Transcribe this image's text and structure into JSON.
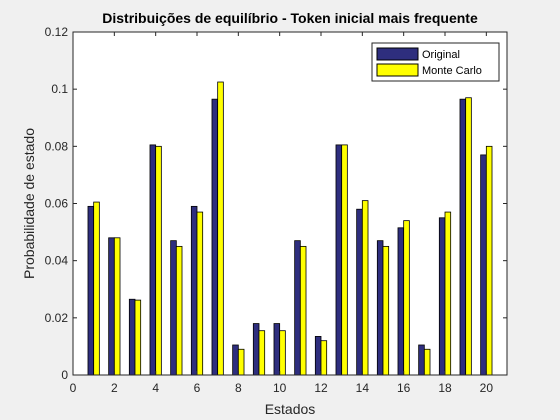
{
  "chart_data": {
    "type": "bar",
    "title": "Distribuições de equilíbrio - Token inicial mais frequente",
    "xlabel": "Estados",
    "ylabel": "Probabilidade de estado",
    "xlim": [
      0,
      21
    ],
    "ylim": [
      0,
      0.12
    ],
    "x_ticks": [
      0,
      2,
      4,
      6,
      8,
      10,
      12,
      14,
      16,
      18,
      20
    ],
    "y_ticks": [
      0,
      0.02,
      0.04,
      0.06,
      0.08,
      0.1,
      0.12
    ],
    "x_tick_labels": [
      "0",
      "2",
      "4",
      "6",
      "8",
      "10",
      "12",
      "14",
      "16",
      "18",
      "20"
    ],
    "y_tick_labels": [
      "0",
      "0.02",
      "0.04",
      "0.06",
      "0.08",
      "0.1",
      "0.12"
    ],
    "categories": [
      1,
      2,
      3,
      4,
      5,
      6,
      7,
      8,
      9,
      10,
      11,
      12,
      13,
      14,
      15,
      16,
      17,
      18,
      19,
      20
    ],
    "legend_position": "top-right",
    "grid": false,
    "series": [
      {
        "name": "Original",
        "color": "#2e2e7e",
        "values": [
          0.059,
          0.048,
          0.0265,
          0.0805,
          0.047,
          0.059,
          0.0965,
          0.0105,
          0.018,
          0.018,
          0.047,
          0.0135,
          0.0805,
          0.058,
          0.047,
          0.0515,
          0.0105,
          0.055,
          0.0965,
          0.077
        ]
      },
      {
        "name": "Monte Carlo",
        "color": "#ffff00",
        "values": [
          0.0605,
          0.048,
          0.0262,
          0.08,
          0.045,
          0.057,
          0.1025,
          0.009,
          0.0155,
          0.0155,
          0.045,
          0.012,
          0.0805,
          0.061,
          0.045,
          0.054,
          0.009,
          0.057,
          0.097,
          0.08
        ]
      }
    ]
  }
}
